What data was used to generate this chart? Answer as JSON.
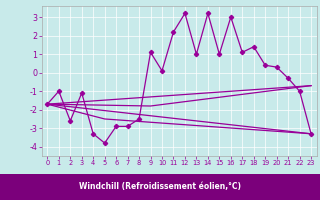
{
  "xlabel": "Windchill (Refroidissement éolien,°C)",
  "bg_color": "#c8eaea",
  "label_bar_color": "#7b007b",
  "line_color": "#990099",
  "xlim": [
    -0.5,
    23.5
  ],
  "ylim": [
    -4.5,
    3.6
  ],
  "yticks": [
    -4,
    -3,
    -2,
    -1,
    0,
    1,
    2,
    3
  ],
  "xticks": [
    0,
    1,
    2,
    3,
    4,
    5,
    6,
    7,
    8,
    9,
    10,
    11,
    12,
    13,
    14,
    15,
    16,
    17,
    18,
    19,
    20,
    21,
    22,
    23
  ],
  "line1_x": [
    0,
    1,
    2,
    3,
    4,
    5,
    6,
    7,
    8,
    9,
    10,
    11,
    12,
    13,
    14,
    15,
    16,
    17,
    18,
    19,
    20,
    21,
    22,
    23
  ],
  "line1_y": [
    -1.7,
    -1.0,
    -2.6,
    -1.1,
    -3.3,
    -3.8,
    -2.9,
    -2.9,
    -2.5,
    1.1,
    0.1,
    2.2,
    3.2,
    1.0,
    3.2,
    1.0,
    3.0,
    1.1,
    1.4,
    0.4,
    0.3,
    -0.3,
    -1.0,
    -3.3
  ],
  "line2_x": [
    0,
    23
  ],
  "line2_y": [
    -1.7,
    -3.3
  ],
  "line3_x": [
    0,
    23
  ],
  "line3_y": [
    -1.7,
    -0.7
  ],
  "line4_x": [
    0,
    5,
    23
  ],
  "line4_y": [
    -1.7,
    -2.5,
    -3.3
  ],
  "line5_x": [
    0,
    9,
    23
  ],
  "line5_y": [
    -1.7,
    -1.8,
    -0.7
  ]
}
